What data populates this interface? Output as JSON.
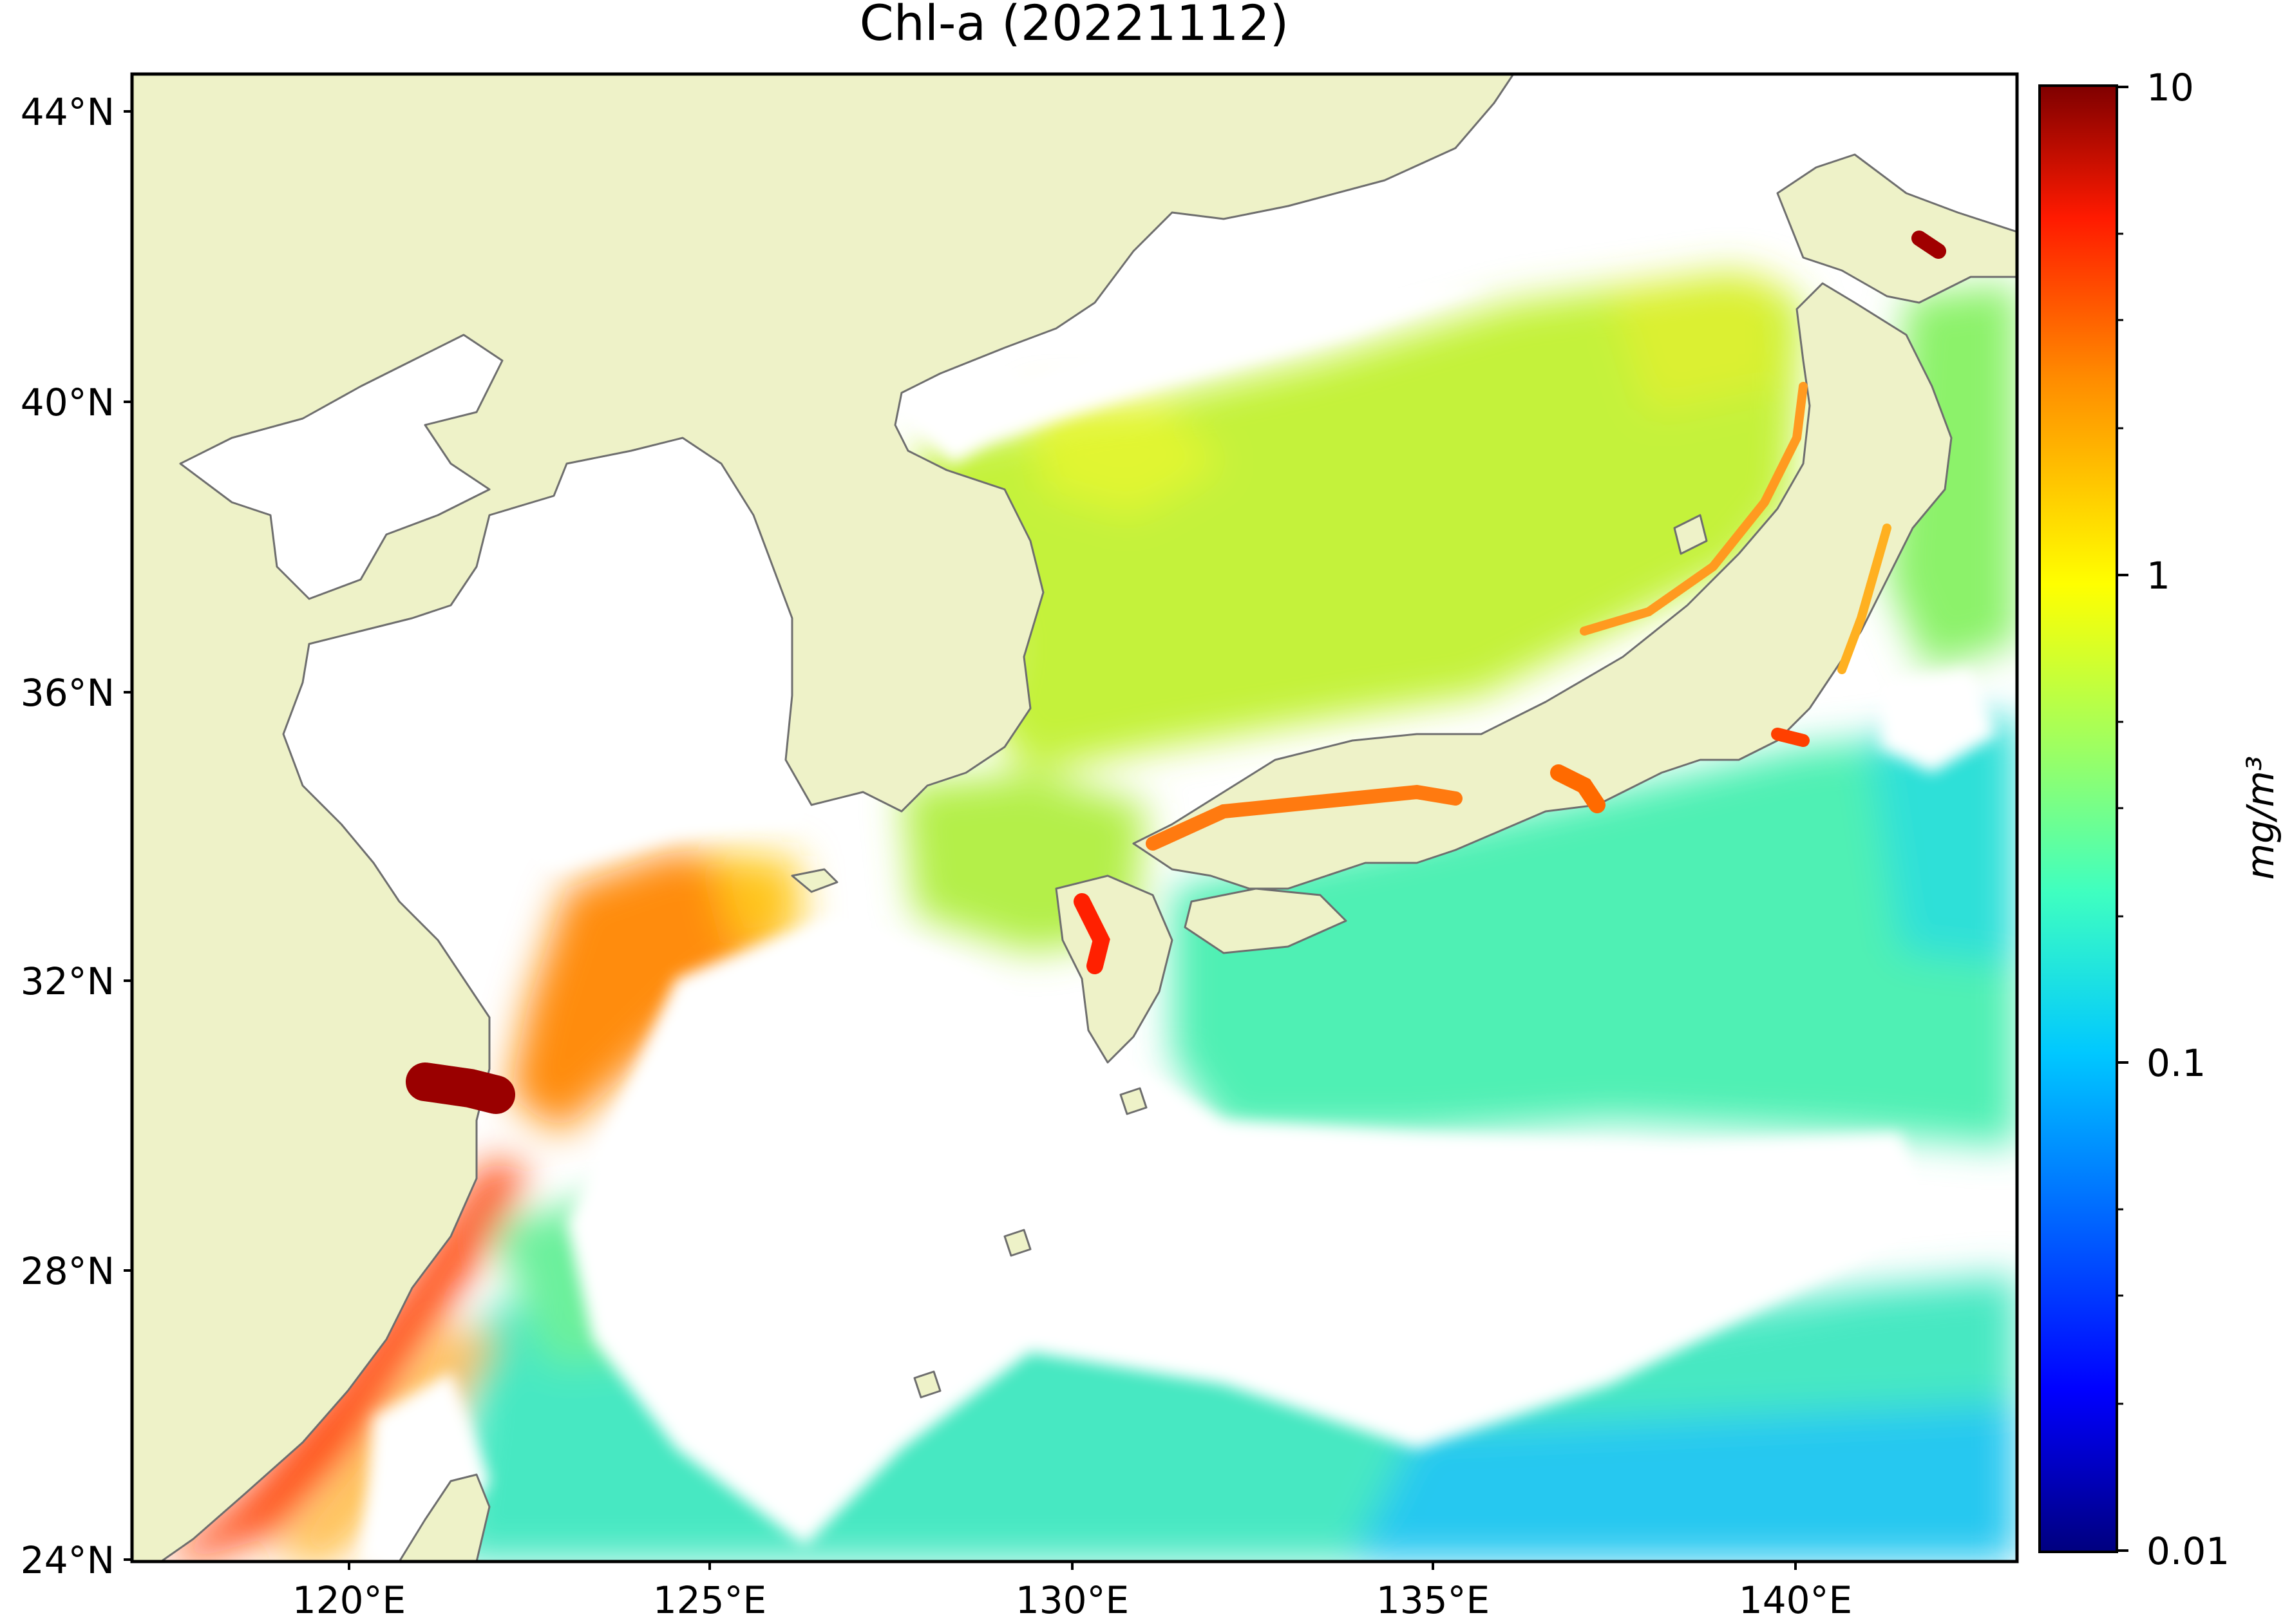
{
  "map": {
    "title": "Chl-a (20221112)",
    "lat_labels": [
      "44°N",
      "40°N",
      "36°N",
      "32°N",
      "28°N",
      "24°N"
    ],
    "lon_labels": [
      "120°E",
      "125°E",
      "130°E",
      "135°E",
      "140°E"
    ],
    "extent": {
      "lon_min": 117,
      "lon_max": 143,
      "lat_min": 24,
      "lat_max": 44.5
    },
    "land_color": "#eef2c8",
    "coastline_color": "#6e6e6e",
    "no_data_color": "#ffffff"
  },
  "colorbar": {
    "label": "mg/m³",
    "ticks": [
      "10",
      "1",
      "0.1",
      "0.01"
    ],
    "scale": "log",
    "range": [
      0.01,
      10
    ],
    "colormap": "jet",
    "colors": [
      "#00007f",
      "#0000ff",
      "#007fff",
      "#00ffff",
      "#7fff7f",
      "#ffff00",
      "#ff7f00",
      "#ff0000",
      "#7f0000"
    ]
  }
}
